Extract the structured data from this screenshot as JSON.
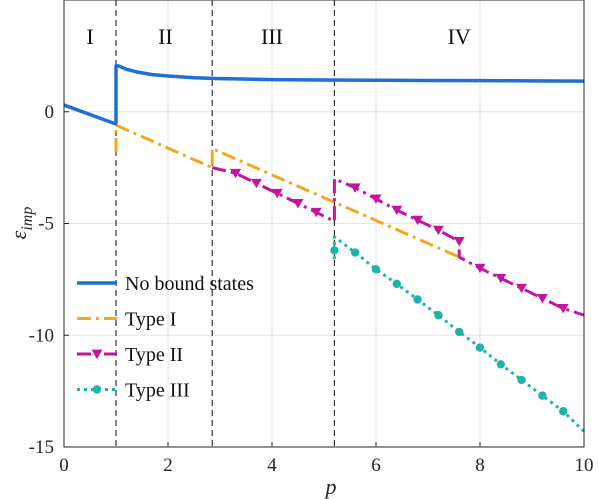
{
  "chart_data": {
    "type": "line",
    "title": "",
    "xlabel": "p",
    "ylabel_main": "ε",
    "ylabel_sub": "imp",
    "xlim": [
      0,
      10
    ],
    "ylim": [
      -15,
      5
    ],
    "xticks": [
      0,
      2,
      4,
      6,
      8,
      10
    ],
    "yticks": [
      0,
      -5,
      -10,
      -15
    ],
    "xtick_labels": [
      "0",
      "2",
      "4",
      "6",
      "8",
      "10"
    ],
    "ytick_labels": [
      "0",
      "-5",
      "-10",
      "-15"
    ],
    "grid": true,
    "legend_position": "bottom-left",
    "vlines": [
      1.0,
      2.85,
      5.2
    ],
    "regions": [
      {
        "label": "I",
        "x": 0.5
      },
      {
        "label": "II",
        "x": 1.95
      },
      {
        "label": "III",
        "x": 4.0
      },
      {
        "label": "IV",
        "x": 7.6
      }
    ],
    "series": [
      {
        "name": "No bound states",
        "color": "#1f6fd4",
        "style": "solid",
        "marker": "none",
        "x": [
          0,
          1.0,
          1.0,
          1.05,
          1.2,
          1.4,
          1.7,
          2.0,
          2.5,
          3.0,
          4.0,
          5.0,
          6.0,
          7.0,
          8.0,
          9.0,
          10.0
        ],
        "y": [
          0.3,
          -0.55,
          2.05,
          2.05,
          1.9,
          1.78,
          1.66,
          1.6,
          1.52,
          1.48,
          1.44,
          1.42,
          1.41,
          1.4,
          1.39,
          1.38,
          1.37
        ]
      },
      {
        "name": "Type I",
        "color": "#f0a81e",
        "style": "dashdot",
        "marker": "none",
        "x": [
          1.0,
          1.0,
          2.85,
          2.85,
          7.6
        ],
        "y": [
          -1.8,
          -0.6,
          -2.5,
          -1.65,
          -6.5
        ]
      },
      {
        "name": "Type II",
        "color": "#c4169c",
        "style": "dashdot",
        "marker": "triangle-down",
        "x": [
          2.85,
          3.3,
          3.7,
          4.1,
          4.5,
          4.85,
          5.2,
          5.2,
          5.6,
          6.0,
          6.4,
          6.8,
          7.2,
          7.6,
          7.6,
          8.0,
          8.4,
          8.8,
          9.2,
          9.6,
          10.0
        ],
        "y": [
          -2.5,
          -2.75,
          -3.2,
          -3.65,
          -4.1,
          -4.5,
          -4.9,
          -3.0,
          -3.4,
          -3.9,
          -4.4,
          -4.85,
          -5.3,
          -5.8,
          -6.5,
          -7.0,
          -7.45,
          -7.9,
          -8.35,
          -8.8,
          -9.1
        ],
        "markers_x": [
          3.3,
          3.7,
          4.1,
          4.5,
          4.85,
          5.6,
          6.0,
          6.4,
          6.8,
          7.2,
          7.6,
          8.0,
          8.4,
          8.8,
          9.2,
          9.6
        ],
        "markers_y": [
          -2.75,
          -3.2,
          -3.65,
          -4.1,
          -4.5,
          -3.4,
          -3.9,
          -4.4,
          -4.85,
          -5.3,
          -5.8,
          -7.0,
          -7.45,
          -7.9,
          -8.35,
          -8.8
        ]
      },
      {
        "name": "Type III",
        "color": "#1fb3aa",
        "style": "dotted",
        "marker": "circle",
        "x": [
          5.2,
          5.2,
          5.6,
          6.0,
          6.4,
          6.8,
          7.2,
          7.6,
          8.0,
          8.4,
          8.8,
          9.2,
          9.6,
          10.0
        ],
        "y": [
          -6.6,
          -5.6,
          -6.3,
          -7.05,
          -7.7,
          -8.4,
          -9.1,
          -9.85,
          -10.55,
          -11.3,
          -12.0,
          -12.7,
          -13.4,
          -14.3
        ],
        "markers_x": [
          5.2,
          5.6,
          6.0,
          6.4,
          6.8,
          7.2,
          7.6,
          8.0,
          8.4,
          8.8,
          9.2,
          9.6
        ],
        "markers_y": [
          -6.2,
          -6.3,
          -7.05,
          -7.7,
          -8.4,
          -9.1,
          -9.85,
          -10.55,
          -11.3,
          -12.0,
          -12.7,
          -13.4
        ]
      }
    ]
  }
}
